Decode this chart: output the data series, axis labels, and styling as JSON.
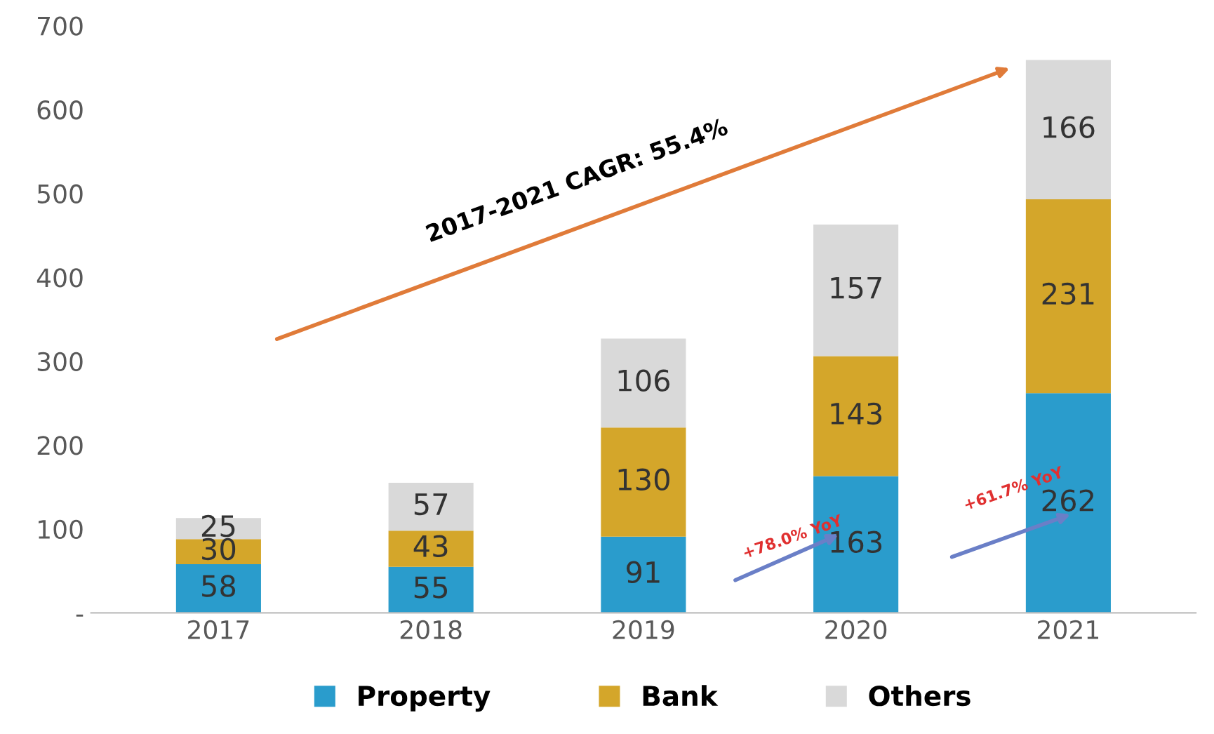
{
  "chart_data": {
    "type": "bar",
    "stacked": true,
    "categories": [
      "2017",
      "2018",
      "2019",
      "2020",
      "2021"
    ],
    "series": [
      {
        "name": "Property",
        "color": "#2a9ccc",
        "values": [
          58,
          55,
          91,
          163,
          262
        ]
      },
      {
        "name": "Bank",
        "color": "#d4a62a",
        "values": [
          30,
          43,
          130,
          143,
          231
        ]
      },
      {
        "name": "Others",
        "color": "#d9d9d9",
        "values": [
          25,
          57,
          106,
          157,
          166
        ]
      }
    ],
    "ylim": [
      0,
      700
    ],
    "yticks": [
      {
        "value": 0,
        "label": "-"
      },
      100,
      200,
      300,
      400,
      500,
      600,
      700
    ],
    "data_labels": true,
    "legend": "bottom",
    "grid": false,
    "annotations": [
      "2017-2021 CAGR: 55.4%",
      "+78.0% YoY",
      "+61.7% YoY"
    ]
  }
}
